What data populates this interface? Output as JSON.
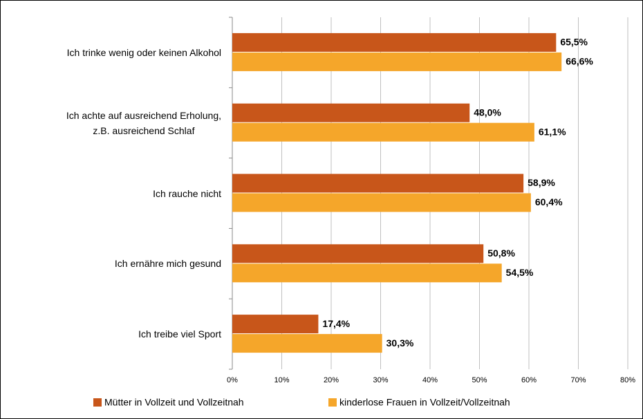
{
  "chart_data": {
    "type": "barh",
    "categories": [
      "Ich trinke wenig oder keinen Alkohol",
      "Ich achte auf ausreichend Erholung,\nz.B. ausreichend Schlaf",
      "Ich rauche nicht",
      "Ich ernähre mich gesund",
      "Ich treibe viel Sport"
    ],
    "series": [
      {
        "name": "Mütter in Vollzeit und Vollzeitnah",
        "color": "#c8561a",
        "values": [
          65.5,
          48.0,
          58.9,
          50.8,
          17.4
        ],
        "value_labels": [
          "65,5%",
          "48,0%",
          "58,9%",
          "50,8%",
          "17,4%"
        ]
      },
      {
        "name": "kinderlose Frauen in Vollzeit/Vollzeitnah",
        "color": "#f5a62a",
        "values": [
          66.6,
          61.1,
          60.4,
          54.5,
          30.3
        ],
        "value_labels": [
          "66,6%",
          "61,1%",
          "60,4%",
          "54,5%",
          "30,3%"
        ]
      }
    ],
    "xlim": [
      0,
      80
    ],
    "xticks": [
      {
        "value": 0,
        "label": "0%"
      },
      {
        "value": 10,
        "label": "10%"
      },
      {
        "value": 20,
        "label": "20%"
      },
      {
        "value": 30,
        "label": "30%"
      },
      {
        "value": 40,
        "label": "40%"
      },
      {
        "value": 50,
        "label": "50%"
      },
      {
        "value": 60,
        "label": "60%"
      },
      {
        "value": 70,
        "label": "70%"
      },
      {
        "value": 80,
        "label": "80%"
      }
    ],
    "grid": true,
    "legend": "bottom"
  }
}
